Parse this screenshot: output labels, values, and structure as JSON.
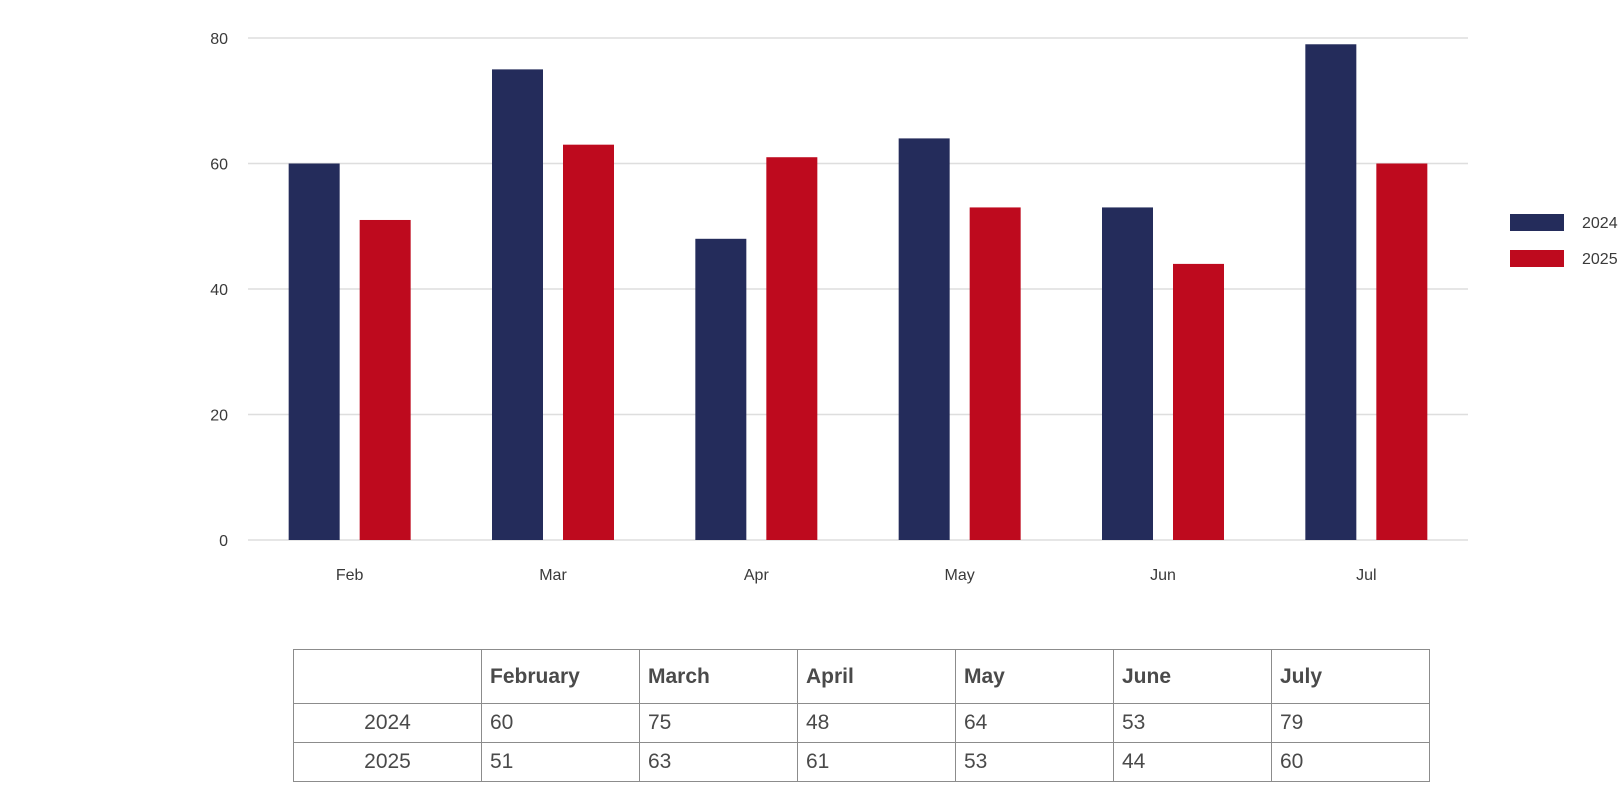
{
  "chart_data": {
    "type": "bar",
    "categories": [
      "Feb",
      "Mar",
      "Apr",
      "May",
      "Jun",
      "Jul"
    ],
    "series": [
      {
        "name": "2024",
        "values": [
          60,
          75,
          48,
          64,
          53,
          79
        ],
        "color": "#242c5b"
      },
      {
        "name": "2025",
        "values": [
          51,
          63,
          61,
          53,
          44,
          60
        ],
        "color": "#be0a1e"
      }
    ],
    "ylim": [
      0,
      80
    ],
    "yticks": [
      0,
      20,
      40,
      60,
      80
    ],
    "grid": true,
    "legend_position": "right"
  },
  "table": {
    "headers": [
      "",
      "February",
      "March",
      "April",
      "May",
      "June",
      "July"
    ],
    "rows": [
      {
        "label": "2024",
        "values": [
          "60",
          "75",
          "48",
          "64",
          "53",
          "79"
        ]
      },
      {
        "label": "2025",
        "values": [
          "51",
          "63",
          "61",
          "53",
          "44",
          "60"
        ]
      }
    ]
  }
}
